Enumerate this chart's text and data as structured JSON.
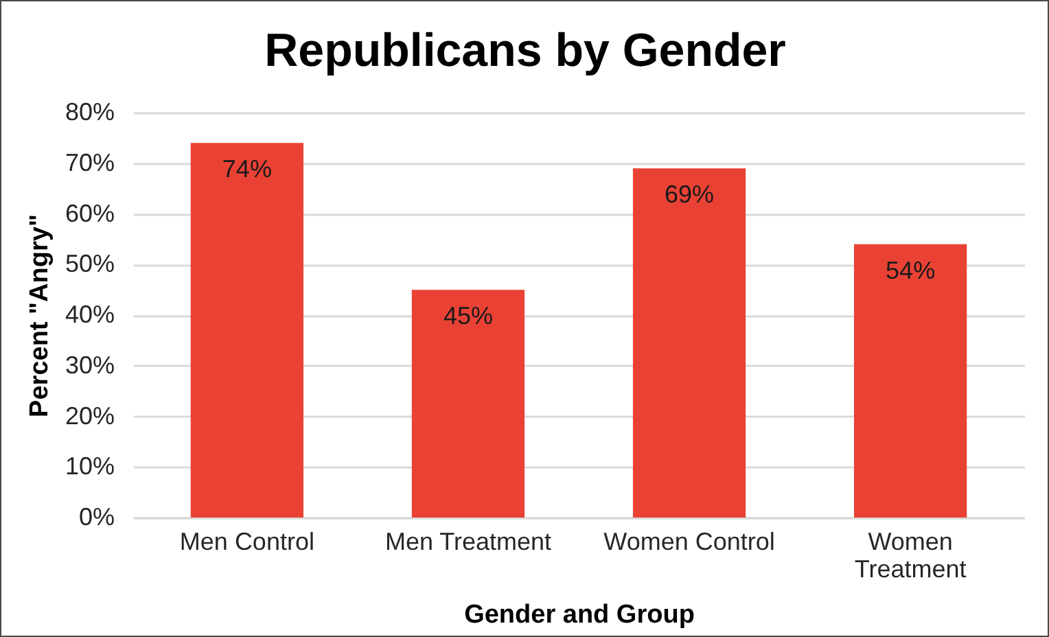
{
  "chart_data": {
    "type": "bar",
    "title": "Republicans by Gender",
    "xlabel": "Gender and Group",
    "ylabel": "Percent \"Angry\"",
    "categories": [
      "Men Control",
      "Men Treatment",
      "Women Control",
      "Women Treatment"
    ],
    "values": [
      74,
      45,
      69,
      54
    ],
    "value_labels": [
      "74%",
      "45%",
      "69%",
      "54%"
    ],
    "color": "#e94235",
    "ylim": [
      0,
      80
    ],
    "yticks": [
      {
        "value": 0,
        "label": "0%"
      },
      {
        "value": 10,
        "label": "10%"
      },
      {
        "value": 20,
        "label": "20%"
      },
      {
        "value": 30,
        "label": "30%"
      },
      {
        "value": 40,
        "label": "40%"
      },
      {
        "value": 50,
        "label": "50%"
      },
      {
        "value": 60,
        "label": "60%"
      },
      {
        "value": 70,
        "label": "70%"
      },
      {
        "value": 80,
        "label": "80%"
      }
    ],
    "grid": true
  }
}
